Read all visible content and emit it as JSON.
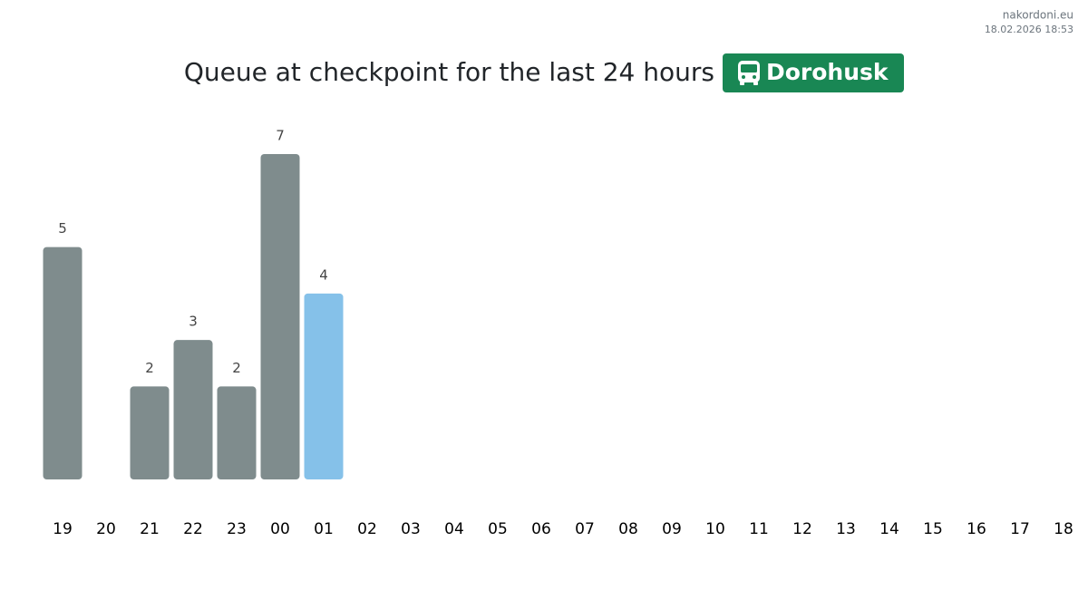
{
  "site": "nakordoni.eu",
  "timestamp": "18.02.2026 18:53",
  "chart_data": {
    "type": "bar",
    "title": "Queue at checkpoint for the last 24 hours",
    "checkpoint": "Dorohusk",
    "categories": [
      "19",
      "20",
      "21",
      "22",
      "23",
      "00",
      "01",
      "02",
      "03",
      "04",
      "05",
      "06",
      "07",
      "08",
      "09",
      "10",
      "11",
      "12",
      "13",
      "14",
      "15",
      "16",
      "17",
      "18"
    ],
    "values": [
      5,
      null,
      2,
      3,
      2,
      7,
      4,
      null,
      null,
      null,
      null,
      null,
      null,
      null,
      null,
      null,
      null,
      null,
      null,
      null,
      null,
      null,
      null,
      null
    ],
    "colors": [
      "#7f8c8d",
      null,
      "#7f8c8d",
      "#7f8c8d",
      "#7f8c8d",
      "#7f8c8d",
      "#85c1e9",
      null,
      null,
      null,
      null,
      null,
      null,
      null,
      null,
      null,
      null,
      null,
      null,
      null,
      null,
      null,
      null,
      null
    ]
  }
}
